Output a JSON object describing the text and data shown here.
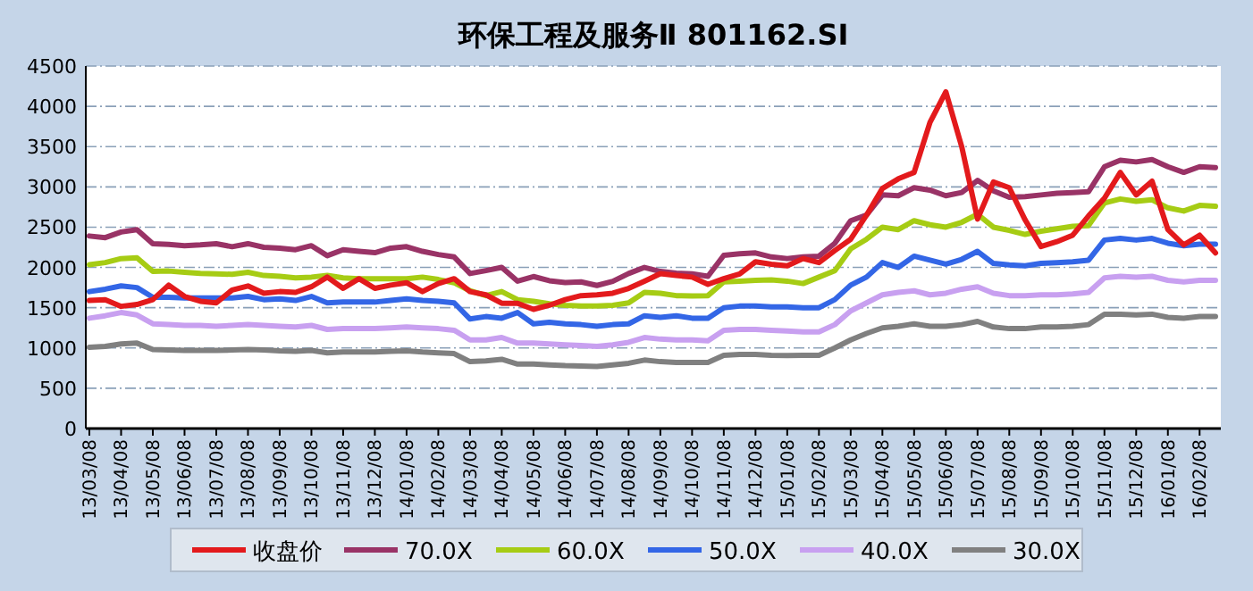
{
  "chart_data": {
    "type": "line",
    "title": "环保工程及服务Ⅱ 801162.SI",
    "categories": [
      "13/03/08",
      null,
      "13/04/08",
      null,
      "13/05/08",
      null,
      "13/06/08",
      null,
      "13/07/08",
      null,
      "13/08/08",
      null,
      "13/09/08",
      null,
      "13/10/08",
      null,
      "13/11/08",
      null,
      "13/12/08",
      null,
      "14/01/08",
      null,
      "14/02/08",
      null,
      "14/03/08",
      null,
      "14/04/08",
      null,
      "14/05/08",
      null,
      "14/06/08",
      null,
      "14/07/08",
      null,
      "14/08/08",
      null,
      "14/09/08",
      null,
      "14/10/08",
      null,
      "14/11/08",
      null,
      "14/12/08",
      null,
      "15/01/08",
      null,
      "15/02/08",
      null,
      "15/03/08",
      null,
      "15/04/08",
      null,
      "15/05/08",
      null,
      "15/06/08",
      null,
      "15/07/08",
      null,
      "15/08/08",
      null,
      "15/09/08",
      null,
      "15/10/08",
      null,
      "15/11/08",
      null,
      "15/12/08",
      null,
      "16/01/08",
      null,
      "16/02/08",
      null
    ],
    "series": [
      {
        "name": "收盘价",
        "color": "#e31a1c",
        "values": [
          1590,
          1600,
          1517,
          1540,
          1600,
          1780,
          1640,
          1580,
          1560,
          1720,
          1770,
          1680,
          1700,
          1690,
          1760,
          1880,
          1740,
          1860,
          1740,
          1780,
          1810,
          1700,
          1800,
          1860,
          1700,
          1660,
          1555,
          1555,
          1480,
          1530,
          1600,
          1650,
          1660,
          1680,
          1740,
          1830,
          1924,
          1900,
          1880,
          1790,
          1860,
          1920,
          2070,
          2040,
          2020,
          2110,
          2060,
          2210,
          2350,
          2650,
          2980,
          3100,
          3180,
          3800,
          4180,
          3500,
          2600,
          3060,
          2990,
          2590,
          2260,
          2320,
          2400,
          2640,
          2860,
          3180,
          2900,
          3070,
          2470,
          2280,
          2400,
          2180
        ]
      },
      {
        "name": "70.0X",
        "color": "#993366",
        "values": [
          2390,
          2370,
          2440,
          2470,
          2295,
          2287,
          2270,
          2280,
          2295,
          2257,
          2295,
          2250,
          2240,
          2220,
          2270,
          2146,
          2220,
          2200,
          2183,
          2240,
          2257,
          2200,
          2160,
          2130,
          1924,
          1960,
          2000,
          1830,
          1887,
          1835,
          1813,
          1820,
          1776,
          1828,
          1924,
          2000,
          1950,
          1930,
          1920,
          1890,
          2150,
          2170,
          2180,
          2130,
          2110,
          2130,
          2140,
          2300,
          2580,
          2650,
          2900,
          2890,
          2990,
          2960,
          2890,
          2930,
          3080,
          2950,
          2870,
          2880,
          2900,
          2920,
          2930,
          2940,
          3250,
          3330,
          3310,
          3340,
          3250,
          3180,
          3250,
          3240
        ]
      },
      {
        "name": "60.0X",
        "color": "#a6cc14",
        "values": [
          2035,
          2060,
          2110,
          2120,
          1950,
          1955,
          1940,
          1925,
          1920,
          1915,
          1940,
          1900,
          1890,
          1870,
          1880,
          1900,
          1870,
          1860,
          1860,
          1860,
          1860,
          1880,
          1850,
          1810,
          1710,
          1650,
          1700,
          1600,
          1580,
          1550,
          1530,
          1520,
          1520,
          1530,
          1560,
          1690,
          1680,
          1650,
          1645,
          1650,
          1820,
          1830,
          1840,
          1845,
          1830,
          1800,
          1880,
          1960,
          2230,
          2350,
          2500,
          2470,
          2580,
          2530,
          2500,
          2560,
          2660,
          2500,
          2460,
          2410,
          2450,
          2480,
          2510,
          2520,
          2800,
          2850,
          2820,
          2840,
          2740,
          2700,
          2770,
          2760
        ]
      },
      {
        "name": "50.0X",
        "color": "#3366e6",
        "values": [
          1700,
          1730,
          1770,
          1750,
          1630,
          1630,
          1620,
          1620,
          1620,
          1620,
          1640,
          1600,
          1610,
          1590,
          1640,
          1560,
          1570,
          1570,
          1570,
          1590,
          1610,
          1590,
          1580,
          1560,
          1360,
          1390,
          1370,
          1440,
          1300,
          1320,
          1300,
          1290,
          1270,
          1290,
          1300,
          1400,
          1380,
          1400,
          1370,
          1370,
          1500,
          1520,
          1520,
          1510,
          1510,
          1500,
          1500,
          1600,
          1780,
          1880,
          2060,
          2000,
          2140,
          2090,
          2040,
          2100,
          2200,
          2050,
          2030,
          2020,
          2050,
          2060,
          2070,
          2090,
          2340,
          2360,
          2340,
          2360,
          2300,
          2270,
          2290,
          2290
        ]
      },
      {
        "name": "40.0X",
        "color": "#c8a0f0",
        "values": [
          1370,
          1400,
          1440,
          1410,
          1300,
          1290,
          1280,
          1280,
          1270,
          1280,
          1290,
          1280,
          1270,
          1260,
          1280,
          1230,
          1240,
          1240,
          1240,
          1250,
          1260,
          1250,
          1240,
          1220,
          1100,
          1100,
          1130,
          1060,
          1060,
          1050,
          1040,
          1030,
          1020,
          1040,
          1070,
          1130,
          1110,
          1100,
          1100,
          1090,
          1220,
          1230,
          1230,
          1220,
          1210,
          1200,
          1200,
          1290,
          1460,
          1560,
          1660,
          1690,
          1710,
          1660,
          1680,
          1730,
          1760,
          1680,
          1650,
          1650,
          1660,
          1660,
          1670,
          1690,
          1870,
          1890,
          1880,
          1890,
          1840,
          1820,
          1840,
          1840
        ]
      },
      {
        "name": "30.0X",
        "color": "#808080",
        "values": [
          1010,
          1020,
          1050,
          1060,
          980,
          975,
          970,
          970,
          970,
          975,
          980,
          975,
          965,
          960,
          970,
          940,
          950,
          950,
          950,
          960,
          965,
          950,
          940,
          930,
          830,
          840,
          860,
          800,
          800,
          790,
          780,
          775,
          770,
          790,
          810,
          850,
          830,
          820,
          820,
          820,
          910,
          920,
          920,
          910,
          905,
          910,
          910,
          1000,
          1100,
          1180,
          1250,
          1270,
          1300,
          1270,
          1270,
          1290,
          1330,
          1260,
          1240,
          1240,
          1260,
          1260,
          1270,
          1290,
          1420,
          1420,
          1410,
          1420,
          1380,
          1370,
          1390,
          1390
        ]
      }
    ],
    "ylim": [
      0,
      4500
    ],
    "yticks": [
      0,
      500,
      1000,
      1500,
      2000,
      2500,
      3000,
      3500,
      4000,
      4500
    ],
    "grid": "y",
    "legend": "bottom"
  }
}
